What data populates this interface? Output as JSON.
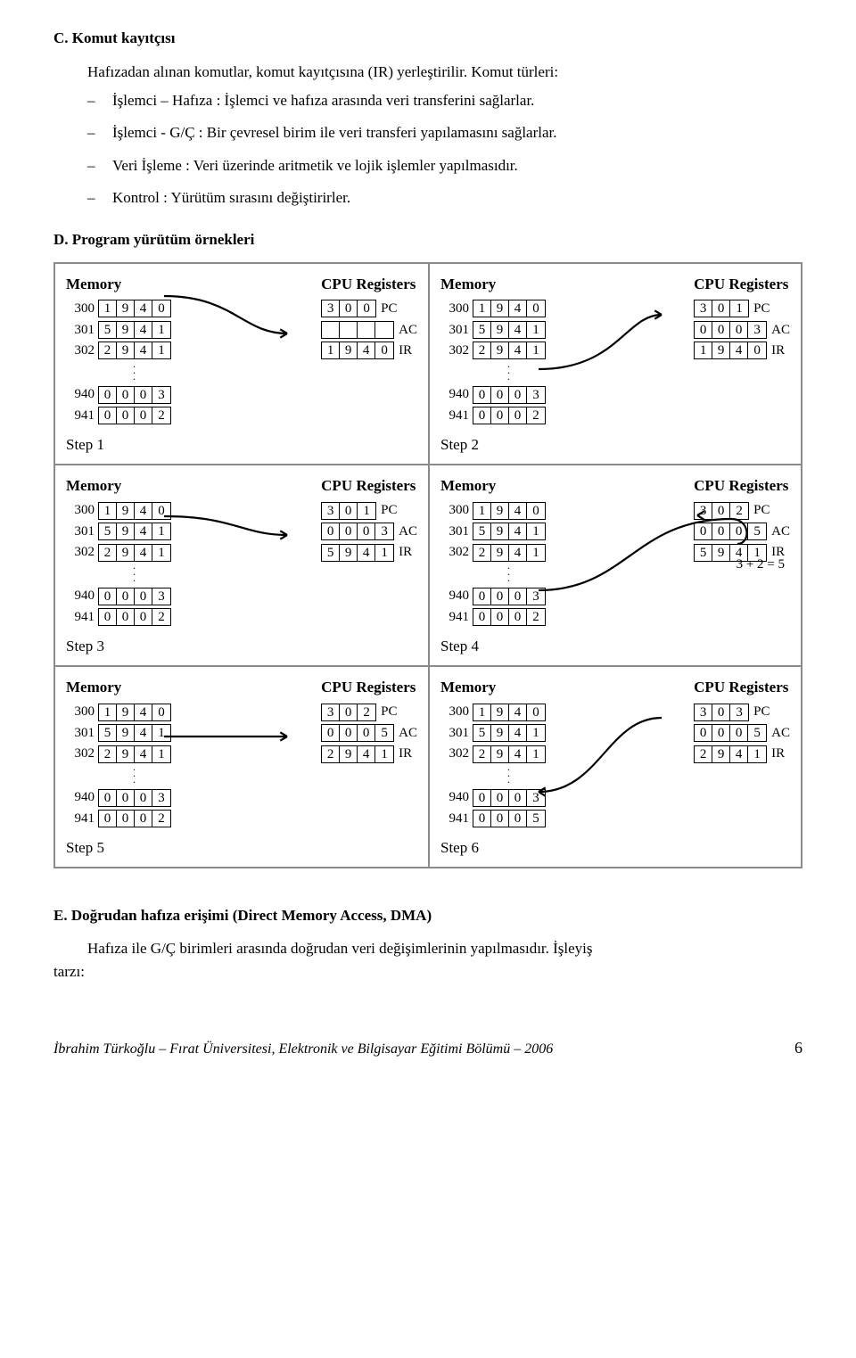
{
  "sectionC": {
    "heading": "C. Komut kayıtçısı",
    "intro": "Hafızadan alınan komutlar, komut kayıtçısına (IR) yerleştirilir. Komut türleri:",
    "items": [
      "İşlemci – Hafıza : İşlemci ve hafıza arasında veri transferini sağlarlar.",
      "İşlemci - G/Ç : Bir çevresel birim ile veri transferi yapılamasını sağlarlar.",
      "Veri İşleme : Veri üzerinde aritmetik ve lojik işlemler yapılmasıdır.",
      "Kontrol : Yürütüm sırasını değiştirirler."
    ]
  },
  "sectionD": {
    "heading": "D. Program yürütüm örnekleri"
  },
  "labels": {
    "memory": "Memory",
    "cpu": "CPU Registers",
    "pc": "PC",
    "ac": "AC",
    "ir": "IR"
  },
  "memAddr": [
    "300",
    "301",
    "302"
  ],
  "memAddr2": [
    "940",
    "941"
  ],
  "steps": [
    {
      "name": "Step 1",
      "mem": [
        [
          "1",
          "9",
          "4",
          "0"
        ],
        [
          "5",
          "9",
          "4",
          "1"
        ],
        [
          "2",
          "9",
          "4",
          "1"
        ]
      ],
      "mem2": [
        [
          "0",
          "0",
          "0",
          "3"
        ],
        [
          "0",
          "0",
          "0",
          "2"
        ]
      ],
      "regs": {
        "pc": [
          "3",
          "0",
          "0"
        ],
        "ac": [
          "",
          "",
          "",
          ""
        ],
        "ir": [
          "1",
          "9",
          "4",
          "0"
        ]
      },
      "arrow": "mem0-ir",
      "annot": null
    },
    {
      "name": "Step 2",
      "mem": [
        [
          "1",
          "9",
          "4",
          "0"
        ],
        [
          "5",
          "9",
          "4",
          "1"
        ],
        [
          "2",
          "9",
          "4",
          "1"
        ]
      ],
      "mem2": [
        [
          "0",
          "0",
          "0",
          "3"
        ],
        [
          "0",
          "0",
          "0",
          "2"
        ]
      ],
      "regs": {
        "pc": [
          "3",
          "0",
          "1"
        ],
        "ac": [
          "0",
          "0",
          "0",
          "3"
        ],
        "ir": [
          "1",
          "9",
          "4",
          "0"
        ]
      },
      "arrow": "mem940-ac",
      "annot": null
    },
    {
      "name": "Step 3",
      "mem": [
        [
          "1",
          "9",
          "4",
          "0"
        ],
        [
          "5",
          "9",
          "4",
          "1"
        ],
        [
          "2",
          "9",
          "4",
          "1"
        ]
      ],
      "mem2": [
        [
          "0",
          "0",
          "0",
          "3"
        ],
        [
          "0",
          "0",
          "0",
          "2"
        ]
      ],
      "regs": {
        "pc": [
          "3",
          "0",
          "1"
        ],
        "ac": [
          "0",
          "0",
          "0",
          "3"
        ],
        "ir": [
          "5",
          "9",
          "4",
          "1"
        ]
      },
      "arrow": "mem1-ir",
      "annot": null
    },
    {
      "name": "Step 4",
      "mem": [
        [
          "1",
          "9",
          "4",
          "0"
        ],
        [
          "5",
          "9",
          "4",
          "1"
        ],
        [
          "2",
          "9",
          "4",
          "1"
        ]
      ],
      "mem2": [
        [
          "0",
          "0",
          "0",
          "3"
        ],
        [
          "0",
          "0",
          "0",
          "2"
        ]
      ],
      "regs": {
        "pc": [
          "3",
          "0",
          "2"
        ],
        "ac": [
          "0",
          "0",
          "0",
          "5"
        ],
        "ir": [
          "5",
          "9",
          "4",
          "1"
        ]
      },
      "arrow": "mem941-ac-ir",
      "annot": "3 + 2 = 5"
    },
    {
      "name": "Step 5",
      "mem": [
        [
          "1",
          "9",
          "4",
          "0"
        ],
        [
          "5",
          "9",
          "4",
          "1"
        ],
        [
          "2",
          "9",
          "4",
          "1"
        ]
      ],
      "mem2": [
        [
          "0",
          "0",
          "0",
          "3"
        ],
        [
          "0",
          "0",
          "0",
          "2"
        ]
      ],
      "regs": {
        "pc": [
          "3",
          "0",
          "2"
        ],
        "ac": [
          "0",
          "0",
          "0",
          "5"
        ],
        "ir": [
          "2",
          "9",
          "4",
          "1"
        ]
      },
      "arrow": "mem2-ir",
      "annot": null
    },
    {
      "name": "Step 6",
      "mem": [
        [
          "1",
          "9",
          "4",
          "0"
        ],
        [
          "5",
          "9",
          "4",
          "1"
        ],
        [
          "2",
          "9",
          "4",
          "1"
        ]
      ],
      "mem2": [
        [
          "0",
          "0",
          "0",
          "3"
        ],
        [
          "0",
          "0",
          "0",
          "5"
        ]
      ],
      "regs": {
        "pc": [
          "3",
          "0",
          "3"
        ],
        "ac": [
          "0",
          "0",
          "0",
          "5"
        ],
        "ir": [
          "2",
          "9",
          "4",
          "1"
        ]
      },
      "arrow": "ac-mem941",
      "annot": null
    }
  ],
  "sectionE": {
    "heading": "E. Doğrudan hafıza erişimi (Direct Memory Access, DMA)",
    "body1": "Hafıza ile G/Ç birimleri arasında doğrudan veri değişimlerinin yapılmasıdır. İşleyiş",
    "body2": "tarzı:"
  },
  "footer": {
    "text": "İbrahim Türkoğlu – Fırat Üniversitesi, Elektronik ve Bilgisayar Eğitimi Bölümü – 2006",
    "page": "6"
  },
  "colors": {
    "border": "#8a8a8a",
    "cell": "#000000",
    "text": "#000000",
    "bg": "#ffffff"
  }
}
